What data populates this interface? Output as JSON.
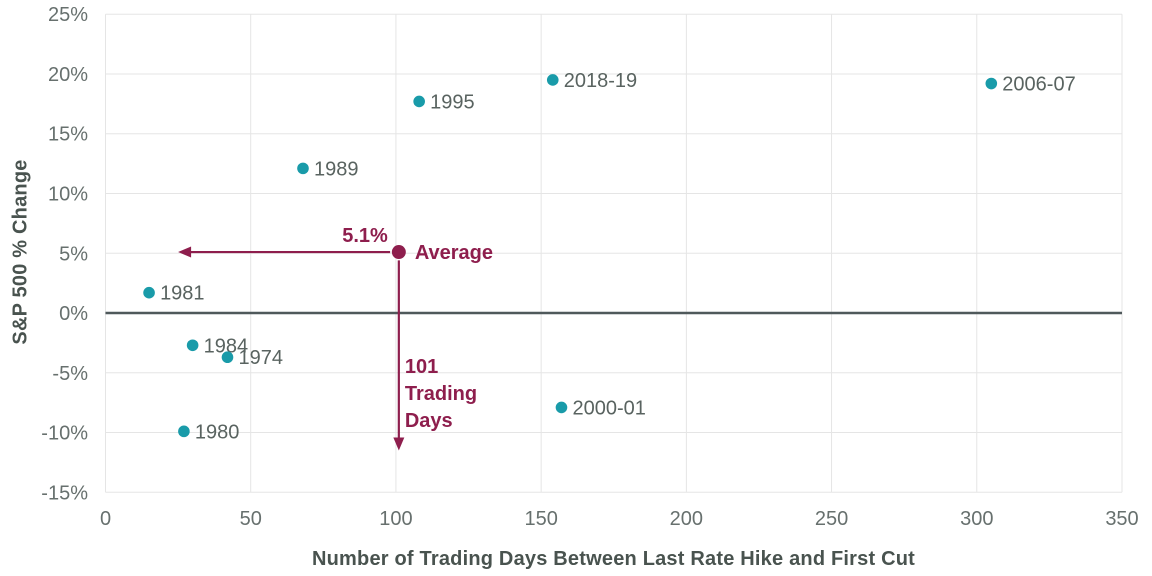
{
  "chart_data": {
    "type": "scatter",
    "title": "",
    "xlabel": "Number of Trading Days Between Last Rate Hike and First Cut",
    "ylabel": "S&P 500 % Change",
    "xlim": [
      0,
      350
    ],
    "ylim": [
      -15,
      25
    ],
    "x_tick_step": 50,
    "y_tick_step": 5,
    "x_tick_labels": [
      "0",
      "50",
      "100",
      "150",
      "200",
      "250",
      "300",
      "350"
    ],
    "y_tick_labels": [
      "25%",
      "20%",
      "15%",
      "10%",
      "5%",
      "0%",
      "-5%",
      "-10%",
      "-15%"
    ],
    "grid": true,
    "zero_line": true,
    "legend": "none",
    "points": [
      {
        "label": "1981",
        "x": 15,
        "y": 1.7
      },
      {
        "label": "1984",
        "x": 30,
        "y": -2.7
      },
      {
        "label": "1974",
        "x": 42,
        "y": -3.7
      },
      {
        "label": "1980",
        "x": 27,
        "y": -9.9
      },
      {
        "label": "1989",
        "x": 68,
        "y": 12.1
      },
      {
        "label": "1995",
        "x": 108,
        "y": 17.7
      },
      {
        "label": "2018-19",
        "x": 154,
        "y": 19.5
      },
      {
        "label": "2006-07",
        "x": 305,
        "y": 19.2
      },
      {
        "label": "2000-01",
        "x": 157,
        "y": -7.9
      }
    ],
    "average_point": {
      "label": "Average",
      "x": 101,
      "y": 5.1
    },
    "annotations": {
      "value_callout": "5.1%",
      "days_callout_lines": [
        "101",
        "Trading",
        "Days"
      ],
      "h_arrow": {
        "y": 5.1,
        "x_from": 98,
        "x_to": 25
      },
      "v_arrow": {
        "x": 101,
        "y_from": 4.4,
        "y_to": -11.5
      }
    },
    "colors": {
      "point": "#199BA9",
      "average": "#8E1E4D",
      "grid": "#E5E5E5",
      "zero_line": "#4F595B",
      "tick_label": "#67706E",
      "point_label": "#596360",
      "axis_title": "#49534F"
    }
  }
}
